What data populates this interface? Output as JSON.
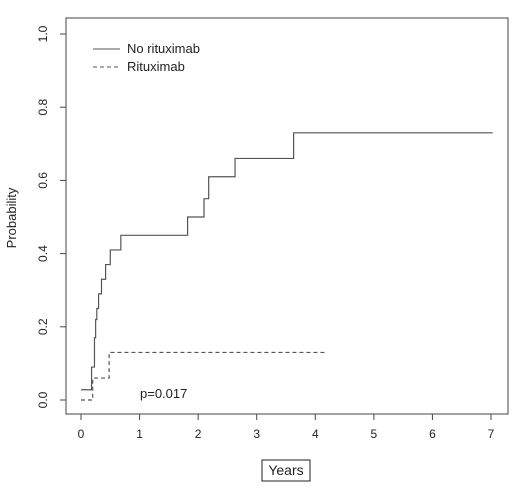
{
  "chart_data": {
    "type": "line",
    "subtype": "step",
    "title": "",
    "xlabel": "Years",
    "ylabel": "Probability",
    "xlim": [
      0,
      7
    ],
    "ylim": [
      0,
      1
    ],
    "xticks": [
      "0",
      "1",
      "2",
      "3",
      "4",
      "5",
      "6",
      "7"
    ],
    "yticks": [
      "0.0",
      "0.2",
      "0.4",
      "0.6",
      "0.8",
      "1.0"
    ],
    "legend_position": "top-left",
    "grid": false,
    "annotation": "p=0.017",
    "series": [
      {
        "name": "No rituximab",
        "line_style": "solid",
        "color": "#555555",
        "x": [
          0,
          0.18,
          0.23,
          0.25,
          0.27,
          0.3,
          0.35,
          0.42,
          0.5,
          0.68,
          1.82,
          2.1,
          2.18,
          2.63,
          3.63,
          7.03
        ],
        "y": [
          0.028,
          0.09,
          0.17,
          0.22,
          0.25,
          0.29,
          0.33,
          0.37,
          0.41,
          0.45,
          0.5,
          0.55,
          0.61,
          0.66,
          0.73,
          0.73
        ]
      },
      {
        "name": "Rituximab",
        "line_style": "dashed",
        "color": "#555555",
        "x": [
          0,
          0.2,
          0.48,
          4.17
        ],
        "y": [
          0,
          0.06,
          0.13,
          0.13
        ]
      }
    ]
  }
}
